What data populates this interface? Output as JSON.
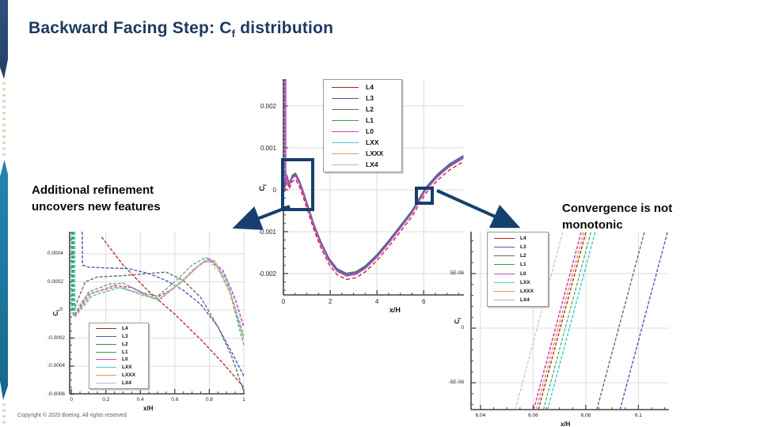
{
  "slide": {
    "title_part1": "Backward Facing Step: C",
    "title_sub": "f",
    "title_part2": " distribution",
    "left_note_line1": "Additional refinement",
    "left_note_line2": "uncovers new features",
    "right_note_line1": "Convergence is not",
    "right_note_line2": "monotonic",
    "copyright": "Copyright © 2020 Boeing. All rights reserved"
  },
  "colors": {
    "accent_navy": "#15406e",
    "title_navy": "#1d3a60",
    "strip_navy": "#2e5180",
    "strip_teal": "#2187b0",
    "strip_dot_beige": "#ded9bf",
    "grid_gray": "#dcdcdc",
    "axis_gray": "#444444"
  },
  "chart_style": {
    "order": [
      "L4",
      "L3",
      "L2",
      "L1",
      "L0",
      "LXX",
      "LXXX",
      "LX4"
    ],
    "palette": {
      "L4": {
        "color": "#b22020",
        "width": 1.3,
        "dash": "5 3"
      },
      "L3": {
        "color": "#4a5ab8",
        "width": 1.4,
        "dash": ""
      },
      "L2": {
        "color": "#6a6a6a",
        "width": 1.4,
        "dash": ""
      },
      "L1": {
        "color": "#3aa04a",
        "width": 1.1,
        "dash": ""
      },
      "L0": {
        "color": "#cc44cc",
        "width": 1.6,
        "dash": ""
      },
      "LXX": {
        "color": "#3ecfd8",
        "width": 1.5,
        "dash": ""
      },
      "LXXX": {
        "color": "#dfa050",
        "width": 1.6,
        "dash": ""
      },
      "LX4": {
        "color": "#b4b4da",
        "width": 1.0,
        "dash": ""
      }
    }
  },
  "chart_data": [
    {
      "id": "main",
      "type": "line",
      "title": "",
      "xlabel": "x/H",
      "ylabel": "C",
      "ylabel_sub": "f",
      "xlim": [
        0,
        7.72
      ],
      "ylim": [
        -0.00251,
        0.00264
      ],
      "grid": true,
      "legend_position": "top-right",
      "x_ticks": [
        {
          "v": 0,
          "label": "0"
        },
        {
          "v": 2,
          "label": "2"
        },
        {
          "v": 4,
          "label": "4"
        },
        {
          "v": 6,
          "label": "6"
        }
      ],
      "y_ticks": [
        {
          "v": 0.002,
          "label": "0.002"
        },
        {
          "v": 0.001,
          "label": "0.001"
        },
        {
          "v": 0,
          "label": "0"
        },
        {
          "v": -0.001,
          "label": "-0.001"
        },
        {
          "v": -0.002,
          "label": "-0.002"
        }
      ],
      "x_minor_step": 0.5,
      "y_minor_step": 0.0002,
      "xlabel_cx": 0.64,
      "base_points": [
        [
          0.05,
          5e-05
        ],
        [
          0.15,
          0.0003
        ],
        [
          0.25,
          0.00012
        ],
        [
          0.38,
          0.0003
        ],
        [
          0.52,
          0.00035
        ],
        [
          0.68,
          0.00018
        ],
        [
          0.85,
          -8e-05
        ],
        [
          1.05,
          -0.00042
        ],
        [
          1.3,
          -0.00085
        ],
        [
          1.6,
          -0.00128
        ],
        [
          1.95,
          -0.00168
        ],
        [
          2.3,
          -0.00193
        ],
        [
          2.7,
          -0.00204
        ],
        [
          3.1,
          -0.002
        ],
        [
          3.5,
          -0.00186
        ],
        [
          4.0,
          -0.00159
        ],
        [
          4.5,
          -0.00126
        ],
        [
          5.0,
          -0.0009
        ],
        [
          5.5,
          -0.00054
        ],
        [
          6.07,
          0.0
        ],
        [
          6.6,
          0.00033
        ],
        [
          7.1,
          0.00057
        ],
        [
          7.7,
          0.00077
        ]
      ],
      "series": [
        {
          "name": "L1",
          "base": true,
          "offset": 5e-05
        },
        {
          "name": "L3",
          "base": true,
          "offset": 3e-05
        },
        {
          "name": "L2",
          "base": true,
          "offset": 0.0
        },
        {
          "name": "L0",
          "base": true,
          "offset": -2e-05
        },
        {
          "name": "L4",
          "base": true,
          "offset": -0.0001
        },
        {
          "name": "wall-spike-red",
          "color": "#b22020",
          "width": 1,
          "dash": "3 2",
          "points": [
            [
              0.03,
              0.00264
            ],
            [
              0.03,
              6e-05
            ]
          ]
        },
        {
          "name": "wall-spike-blue",
          "color": "#4a5ab8",
          "width": 1,
          "points": [
            [
              0.07,
              0.00264
            ],
            [
              0.07,
              8e-05
            ]
          ]
        },
        {
          "name": "wall-spike-magenta",
          "color": "#cc44cc",
          "width": 1,
          "points": [
            [
              0.11,
              0.00264
            ],
            [
              0.11,
              0.0001
            ]
          ]
        }
      ]
    },
    {
      "id": "inset_left",
      "type": "line",
      "title": "",
      "xlabel": "x/H",
      "ylabel": "C",
      "ylabel_sub": "f",
      "xlim": [
        -0.01,
        1.005
      ],
      "ylim": [
        -0.000597,
        0.000558
      ],
      "grid": true,
      "legend_position": "bottom-left",
      "x_ticks": [
        {
          "v": 0,
          "label": "0"
        },
        {
          "v": 0.2,
          "label": "0.2"
        },
        {
          "v": 0.4,
          "label": "0.4"
        },
        {
          "v": 0.6,
          "label": "0.6"
        },
        {
          "v": 0.8,
          "label": "0.8"
        },
        {
          "v": 1,
          "label": "1"
        }
      ],
      "y_ticks": [
        {
          "v": 0.0004,
          "label": "0.0004"
        },
        {
          "v": 0.0002,
          "label": "0.0002"
        },
        {
          "v": 0,
          "label": "0"
        },
        {
          "v": -0.0002,
          "label": "-0.0002"
        },
        {
          "v": -0.0004,
          "label": "-0.0004"
        },
        {
          "v": -0.0006,
          "label": "-0.0006"
        }
      ],
      "x_minor_step": 0.05,
      "y_minor_step": 5e-05,
      "xlabel_cx": 0.475,
      "dash_all": "4 2",
      "series": [
        {
          "name": "L4",
          "points": [
            [
              0.175,
              0.00052
            ],
            [
              0.3,
              0.00032
            ],
            [
              0.45,
              0.00013
            ],
            [
              0.6,
              -3e-05
            ],
            [
              0.75,
              -0.00021
            ],
            [
              0.88,
              -0.00038
            ],
            [
              1.0,
              -0.00055
            ]
          ]
        },
        {
          "name": "L3",
          "points": [
            [
              0.062,
              0.000558
            ],
            [
              0.065,
              0.00032
            ],
            [
              0.1,
              0.000305
            ],
            [
              0.2,
              0.0003
            ],
            [
              0.33,
              0.000295
            ],
            [
              0.45,
              0.00026
            ],
            [
              0.55,
              0.00021
            ],
            [
              0.65,
              0.00014
            ],
            [
              0.75,
              4e-05
            ],
            [
              0.85,
              -0.00012
            ],
            [
              0.93,
              -0.0003
            ],
            [
              1.0,
              -0.00047
            ]
          ]
        },
        {
          "name": "L2",
          "points": [
            [
              0.02,
              2e-05
            ],
            [
              0.08,
              0.0002
            ],
            [
              0.15,
              0.000235
            ],
            [
              0.3,
              0.000245
            ],
            [
              0.45,
              0.00026
            ],
            [
              0.55,
              0.00027
            ],
            [
              0.65,
              0.00021
            ],
            [
              0.75,
              9e-05
            ],
            [
              0.85,
              -0.00012
            ],
            [
              0.93,
              -0.00033
            ],
            [
              1.0,
              -0.00058
            ]
          ]
        },
        {
          "name": "L1",
          "points": [
            [
              0.02,
              -3e-05
            ],
            [
              0.1,
              0.00013
            ],
            [
              0.22,
              0.000185
            ],
            [
              0.3,
              0.00019
            ],
            [
              0.42,
              0.00012
            ],
            [
              0.5,
              0.0001
            ],
            [
              0.6,
              0.0002
            ],
            [
              0.7,
              0.00032
            ],
            [
              0.78,
              0.000375
            ],
            [
              0.85,
              0.0003
            ],
            [
              0.92,
              0.00012
            ],
            [
              1.0,
              -0.00025
            ]
          ]
        },
        {
          "name": "L0",
          "points": [
            [
              0.02,
              -4e-05
            ],
            [
              0.1,
              0.00011
            ],
            [
              0.25,
              0.000175
            ],
            [
              0.35,
              0.00016
            ],
            [
              0.48,
              8e-05
            ],
            [
              0.6,
              0.00016
            ],
            [
              0.72,
              0.0003
            ],
            [
              0.8,
              0.000365
            ],
            [
              0.88,
              0.00028
            ],
            [
              0.95,
              8e-05
            ],
            [
              1.0,
              -0.00012
            ]
          ]
        },
        {
          "name": "LXX",
          "points": [
            [
              0.02,
              -5e-05
            ],
            [
              0.12,
              0.0001
            ],
            [
              0.28,
              0.00016
            ],
            [
              0.4,
              0.00012
            ],
            [
              0.5,
              7e-05
            ],
            [
              0.62,
              0.00018
            ],
            [
              0.75,
              0.00033
            ],
            [
              0.82,
              0.00036
            ],
            [
              0.9,
              0.00022
            ],
            [
              1.0,
              -0.00018
            ]
          ]
        },
        {
          "name": "LXXX",
          "points": [
            [
              0.02,
              -5e-05
            ],
            [
              0.12,
              0.00012
            ],
            [
              0.28,
              0.00017
            ],
            [
              0.42,
              0.0001
            ],
            [
              0.52,
              8e-05
            ],
            [
              0.64,
              0.0002
            ],
            [
              0.76,
              0.00034
            ],
            [
              0.83,
              0.00035
            ],
            [
              0.9,
              0.0002
            ],
            [
              1.0,
              -0.0002
            ]
          ]
        },
        {
          "name": "LX4",
          "points": [
            [
              0.02,
              0.0
            ],
            [
              0.1,
              0.00012
            ],
            [
              0.25,
              0.00017
            ],
            [
              0.4,
              0.00011
            ],
            [
              0.52,
              9e-05
            ],
            [
              0.65,
              0.00022
            ],
            [
              0.78,
              0.00036
            ],
            [
              0.86,
              0.00027
            ],
            [
              0.93,
              0.0001
            ],
            [
              1.0,
              -0.00022
            ]
          ]
        },
        {
          "name": "wall-band-1",
          "color": "#2f9e6e",
          "width": 2,
          "points": [
            [
              0.004,
              0.000558
            ],
            [
              0.004,
              -2e-05
            ]
          ]
        },
        {
          "name": "wall-band-2",
          "color": "#35b6a8",
          "width": 2,
          "points": [
            [
              0.012,
              0.000558
            ],
            [
              0.012,
              -4e-05
            ]
          ]
        },
        {
          "name": "wall-band-3",
          "color": "#57c785",
          "width": 1.5,
          "points": [
            [
              0.02,
              0.000558
            ],
            [
              0.02,
              -3e-05
            ]
          ]
        }
      ]
    },
    {
      "id": "inset_right",
      "type": "line",
      "title": "",
      "xlabel": "x/H",
      "ylabel": "C",
      "ylabel_sub": "f",
      "xlim": [
        6.0364,
        6.1116
      ],
      "ylim": [
        -7.46e-06,
        8.84e-06
      ],
      "grid": true,
      "legend_position": "top-left",
      "x_ticks": [
        {
          "v": 6.04,
          "label": "6.04"
        },
        {
          "v": 6.06,
          "label": "6.06"
        },
        {
          "v": 6.08,
          "label": "6.08"
        },
        {
          "v": 6.1,
          "label": "6.1"
        }
      ],
      "y_ticks": [
        {
          "v": 5e-06,
          "label": "5E-06"
        },
        {
          "v": 0,
          "label": "0"
        },
        {
          "v": -5e-06,
          "label": "-5E-06"
        }
      ],
      "x_minor_step": 0.005,
      "y_minor_step": 1e-06,
      "xlabel_cx": 0.5,
      "dash_all": "4 2",
      "zero_crossings_xH": {
        "LX4": 6.0615,
        "L0": 6.0685,
        "LXXX": 6.0695,
        "L4": 6.0703,
        "L1": 6.0722,
        "LXX": 6.0738,
        "L2": 6.0925,
        "L3": 6.1013
      },
      "series": [
        {
          "name": "LX4",
          "points": [
            [
              6.0532,
              -7.46e-06
            ],
            [
              6.0713,
              8.84e-06
            ]
          ]
        },
        {
          "name": "L0",
          "points": [
            [
              6.0602,
              -7.46e-06
            ],
            [
              6.0783,
              8.84e-06
            ]
          ]
        },
        {
          "name": "LXXX",
          "points": [
            [
              6.0612,
              -7.46e-06
            ],
            [
              6.0793,
              8.84e-06
            ]
          ]
        },
        {
          "name": "L4",
          "points": [
            [
              6.062,
              -7.46e-06
            ],
            [
              6.0801,
              8.84e-06
            ]
          ]
        },
        {
          "name": "L1",
          "points": [
            [
              6.0639,
              -7.46e-06
            ],
            [
              6.082,
              8.84e-06
            ]
          ]
        },
        {
          "name": "LXX",
          "points": [
            [
              6.0655,
              -7.46e-06
            ],
            [
              6.0836,
              8.84e-06
            ]
          ]
        },
        {
          "name": "L2",
          "points": [
            [
              6.0842,
              -7.46e-06
            ],
            [
              6.1023,
              8.84e-06
            ]
          ]
        },
        {
          "name": "L3",
          "points": [
            [
              6.093,
              -7.46e-06
            ],
            [
              6.1111,
              8.84e-06
            ]
          ]
        }
      ]
    }
  ]
}
